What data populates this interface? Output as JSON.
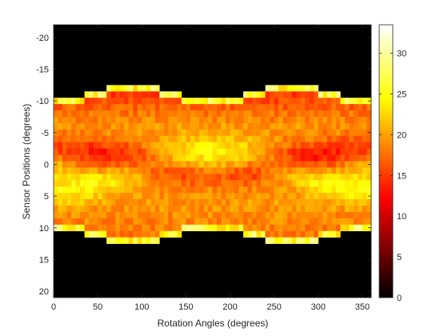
{
  "chart_data": {
    "type": "heatmap",
    "title": "",
    "xlabel": "Rotation Angles (degrees)",
    "ylabel": "Sensor Positions (degrees)",
    "xlim": [
      0,
      360
    ],
    "ylim": [
      -22,
      21
    ],
    "y_reversed": true,
    "x_ticks": [
      0,
      50,
      100,
      150,
      200,
      250,
      300,
      350
    ],
    "y_ticks": [
      -20,
      -15,
      -10,
      -5,
      0,
      5,
      10,
      15,
      20
    ],
    "colormap": "hot",
    "colorbar": {
      "ticks": [
        0,
        5,
        10,
        15,
        20,
        25,
        30
      ],
      "range": [
        0,
        33.5
      ],
      "location": "right"
    },
    "cell_width_deg": 5,
    "sensor_spacing_deg": 1,
    "outer_support_sensor": 10.5,
    "support_peak_sensor": 13,
    "note_background_value": 0
  }
}
